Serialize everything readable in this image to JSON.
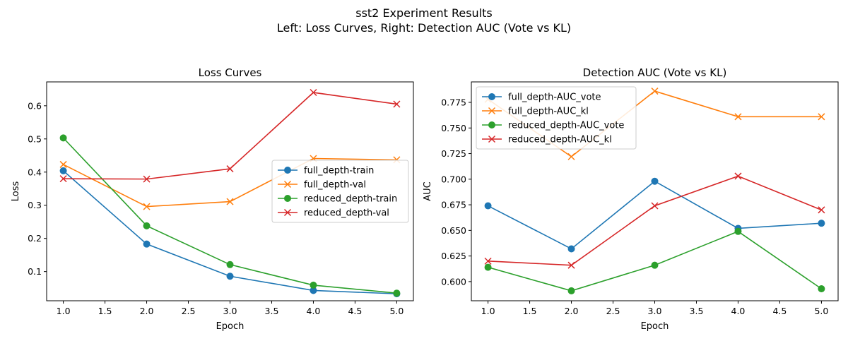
{
  "figure": {
    "suptitle_line1": "sst2 Experiment Results",
    "suptitle_line2": "Left: Loss Curves, Right: Detection AUC (Vote vs KL)"
  },
  "chart_data": [
    {
      "type": "line",
      "title": "Loss Curves",
      "xlabel": "Epoch",
      "ylabel": "Loss",
      "xlim": [
        0.8,
        5.2
      ],
      "ylim": [
        0.012,
        0.672
      ],
      "xticks": [
        1.0,
        1.5,
        2.0,
        2.5,
        3.0,
        3.5,
        4.0,
        4.5,
        5.0
      ],
      "xtick_labels": [
        "1.0",
        "1.5",
        "2.0",
        "2.5",
        "3.0",
        "3.5",
        "4.0",
        "4.5",
        "5.0"
      ],
      "yticks": [
        0.1,
        0.2,
        0.3,
        0.4,
        0.5,
        0.6
      ],
      "ytick_labels": [
        "0.1",
        "0.2",
        "0.3",
        "0.4",
        "0.5",
        "0.6"
      ],
      "grid": false,
      "legend_position": "center-right",
      "x": [
        1,
        2,
        3,
        4,
        5
      ],
      "series": [
        {
          "name": "full_depth-train",
          "values": [
            0.404,
            0.183,
            0.086,
            0.043,
            0.033
          ],
          "color": "#1f77b4",
          "marker": "o"
        },
        {
          "name": "full_depth-val",
          "values": [
            0.423,
            0.296,
            0.311,
            0.441,
            0.437
          ],
          "color": "#ff7f0e",
          "marker": "x"
        },
        {
          "name": "reduced_depth-train",
          "values": [
            0.503,
            0.238,
            0.121,
            0.059,
            0.035
          ],
          "color": "#2ca02c",
          "marker": "o"
        },
        {
          "name": "reduced_depth-val",
          "values": [
            0.38,
            0.379,
            0.41,
            0.64,
            0.605
          ],
          "color": "#d62728",
          "marker": "x"
        }
      ]
    },
    {
      "type": "line",
      "title": "Detection AUC (Vote vs KL)",
      "xlabel": "Epoch",
      "ylabel": "AUC",
      "xlim": [
        0.8,
        5.2
      ],
      "ylim": [
        0.5813,
        0.795
      ],
      "xticks": [
        1.0,
        1.5,
        2.0,
        2.5,
        3.0,
        3.5,
        4.0,
        4.5,
        5.0
      ],
      "xtick_labels": [
        "1.0",
        "1.5",
        "2.0",
        "2.5",
        "3.0",
        "3.5",
        "4.0",
        "4.5",
        "5.0"
      ],
      "yticks": [
        0.6,
        0.625,
        0.65,
        0.675,
        0.7,
        0.725,
        0.75,
        0.775
      ],
      "ytick_labels": [
        "0.600",
        "0.625",
        "0.650",
        "0.675",
        "0.700",
        "0.725",
        "0.750",
        "0.775"
      ],
      "grid": false,
      "legend_position": "upper-left",
      "x": [
        1,
        2,
        3,
        4,
        5
      ],
      "series": [
        {
          "name": "full_depth-AUC_vote",
          "values": [
            0.674,
            0.632,
            0.698,
            0.652,
            0.657
          ],
          "color": "#1f77b4",
          "marker": "o"
        },
        {
          "name": "full_depth-AUC_kl",
          "values": [
            0.778,
            0.722,
            0.786,
            0.761,
            0.761
          ],
          "color": "#ff7f0e",
          "marker": "x"
        },
        {
          "name": "reduced_depth-AUC_vote",
          "values": [
            0.614,
            0.591,
            0.616,
            0.649,
            0.593
          ],
          "color": "#2ca02c",
          "marker": "o"
        },
        {
          "name": "reduced_depth-AUC_kl",
          "values": [
            0.62,
            0.616,
            0.674,
            0.703,
            0.67
          ],
          "color": "#d62728",
          "marker": "x"
        }
      ]
    }
  ]
}
